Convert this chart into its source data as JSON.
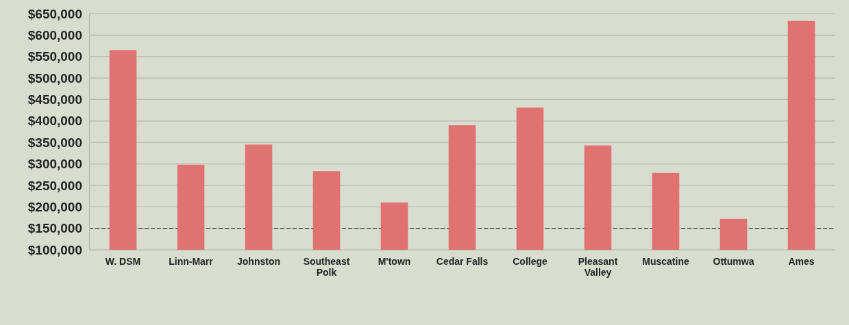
{
  "chart_data": {
    "type": "bar",
    "categories": [
      "W. DSM",
      "Linn-Marr",
      "Johnston",
      "Southeast Polk",
      "M'town",
      "Cedar Falls",
      "College",
      "Pleasant Valley",
      "Muscatine",
      "Ottumwa",
      "Ames"
    ],
    "values": [
      565000,
      298000,
      345000,
      283000,
      210000,
      390000,
      431000,
      343000,
      279000,
      172000,
      633000
    ],
    "color": "#e07272",
    "ylim": [
      100000,
      650000
    ],
    "yticks": [
      {
        "value": 100000,
        "label": "$100,000"
      },
      {
        "value": 150000,
        "label": "$150,000"
      },
      {
        "value": 200000,
        "label": "$200,000"
      },
      {
        "value": 250000,
        "label": "$250,000"
      },
      {
        "value": 300000,
        "label": "$300,000"
      },
      {
        "value": 350000,
        "label": "$350,000"
      },
      {
        "value": 400000,
        "label": "$400,000"
      },
      {
        "value": 450000,
        "label": "$450,000"
      },
      {
        "value": 500000,
        "label": "$500,000"
      },
      {
        "value": 550000,
        "label": "$550,000"
      },
      {
        "value": 600000,
        "label": "$600,000"
      },
      {
        "value": 650000,
        "label": "$650,000"
      }
    ],
    "grid": "y",
    "ref_lines": [
      {
        "axis": "y",
        "value": 150000,
        "color": "#333333",
        "line_style": "dashed"
      }
    ]
  }
}
